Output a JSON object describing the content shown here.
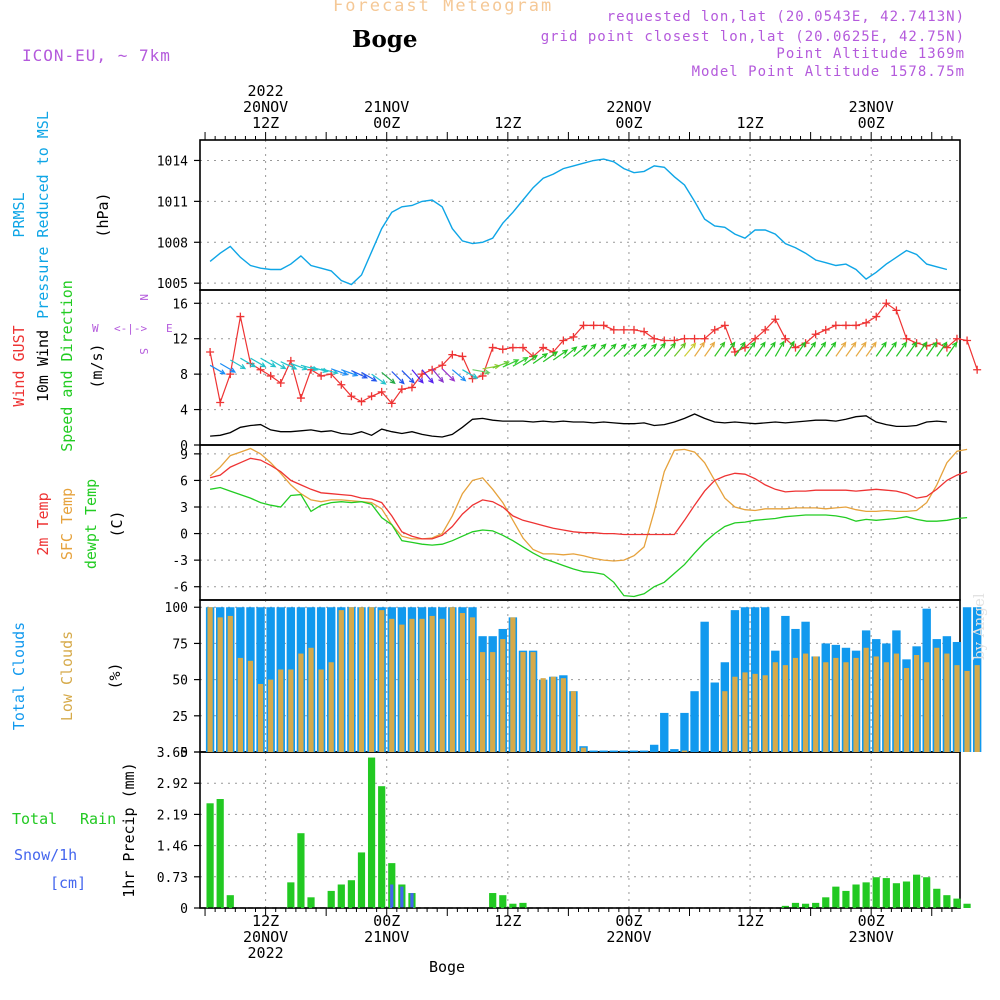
{
  "header": {
    "title": "Forecast Meteogram",
    "station": "Boge",
    "model": "ICON-EU, ~ 7km",
    "requested": "requested lon,lat (20.0543E, 42.7413N)",
    "grid": "grid point closest lon,lat (20.0625E, 42.75N)",
    "point_alt": "Point Altitude 1369m",
    "model_alt": "Model Point Altitude 1578.75m",
    "byline": "by Angel",
    "footer": "Boge"
  },
  "colors": {
    "pressure": "#0ea5e6",
    "gust": "#ee3333",
    "wind": "#000000",
    "temp": "#ee3333",
    "sfc": "#e6a23c",
    "dewpt": "#22cc22",
    "total_cloud": "#1199ee",
    "low_cloud": "#d6aa4a",
    "rain": "#22c922",
    "snow": "#4466ee",
    "purple": "#b45adc",
    "grid": "#999999"
  },
  "time_axis": {
    "top_labels": [
      {
        "t": 12,
        "lines": [
          "2022",
          "20NOV",
          "12Z"
        ]
      },
      {
        "t": 24,
        "lines": [
          "21NOV",
          "00Z"
        ]
      },
      {
        "t": 36,
        "lines": [
          "12Z"
        ]
      },
      {
        "t": 48,
        "lines": [
          "22NOV",
          "00Z"
        ]
      },
      {
        "t": 60,
        "lines": [
          "12Z"
        ]
      },
      {
        "t": 72,
        "lines": [
          "23NOV",
          "00Z"
        ]
      }
    ],
    "bottom_labels": [
      {
        "t": 12,
        "lines": [
          "12Z",
          "20NOV",
          "2022"
        ]
      },
      {
        "t": 24,
        "lines": [
          "00Z",
          "21NOV"
        ]
      },
      {
        "t": 36,
        "lines": [
          "12Z"
        ]
      },
      {
        "t": 48,
        "lines": [
          "00Z",
          "22NOV"
        ]
      },
      {
        "t": 60,
        "lines": [
          "12Z"
        ]
      },
      {
        "t": 72,
        "lines": [
          "00Z",
          "23NOV"
        ]
      }
    ]
  },
  "panel_labels": {
    "pressure": [
      {
        "text": "PRMSL",
        "color": "pressure"
      },
      {
        "text": "Pressure Reduced to MSL",
        "color": "pressure"
      },
      {
        "text": "(hPa)",
        "color": "wind"
      }
    ],
    "wind": [
      {
        "text": "Wind GUST",
        "color": "gust"
      },
      {
        "text": "10m Wind",
        "color": "wind"
      },
      {
        "text": "Speed and Direction",
        "color": "dewpt"
      },
      {
        "text": "(m/s)",
        "color": "wind"
      }
    ],
    "temp": [
      {
        "text": "2m Temp",
        "color": "temp"
      },
      {
        "text": "SFC Temp",
        "color": "sfc"
      },
      {
        "text": "dewpt Temp",
        "color": "dewpt"
      },
      {
        "text": "(C)",
        "color": "wind"
      }
    ],
    "cloud": [
      {
        "text": "Total Clouds",
        "color": "total_cloud"
      },
      {
        "text": "Low Clouds",
        "color": "low_cloud"
      },
      {
        "text": "(%)",
        "color": "wind"
      }
    ],
    "precip_axis": "1hr Precip (mm)",
    "precip_legend": {
      "total": "Total",
      "rain": "Rain",
      "snow": "Snow/1h",
      "cm": "[cm]"
    },
    "compass": {
      "n": "N",
      "s": "S",
      "w": "W",
      "e": "E",
      "arrow": "<-|->"
    }
  },
  "chart_data": [
    {
      "type": "line",
      "name": "pressure",
      "x_start": 6.5,
      "x_step": 1,
      "ylim": [
        1004.5,
        1015.5
      ],
      "yticks": [
        1005,
        1008,
        1011,
        1014
      ],
      "ylabel": "Pressure Reduced to MSL (hPa)",
      "values": [
        1006.6,
        1007.2,
        1007.7,
        1006.9,
        1006.3,
        1006.1,
        1006.0,
        1006.0,
        1006.4,
        1007.0,
        1006.3,
        1006.1,
        1005.9,
        1005.2,
        1004.9,
        1005.6,
        1007.3,
        1009.0,
        1010.2,
        1010.6,
        1010.7,
        1011.0,
        1011.1,
        1010.6,
        1009.0,
        1008.1,
        1007.9,
        1008.0,
        1008.3,
        1009.4,
        1010.2,
        1011.1,
        1012.0,
        1012.7,
        1013.0,
        1013.4,
        1013.6,
        1013.8,
        1014.0,
        1014.1,
        1013.9,
        1013.4,
        1013.1,
        1013.2,
        1013.6,
        1013.5,
        1012.8,
        1012.2,
        1011.0,
        1009.7,
        1009.2,
        1009.1,
        1008.6,
        1008.3,
        1008.9,
        1008.9,
        1008.6,
        1007.9,
        1007.6,
        1007.2,
        1006.7,
        1006.5,
        1006.3,
        1006.4,
        1006.0,
        1005.3,
        1005.8,
        1006.4,
        1006.9,
        1007.4,
        1007.1,
        1006.4,
        1006.2,
        1006.0
      ]
    },
    {
      "type": "line",
      "name": "wind",
      "x_start": 6.5,
      "x_step": 1,
      "ylim": [
        0,
        17.5
      ],
      "yticks": [
        0,
        4,
        8,
        12,
        16
      ],
      "ylabel": "Speed (m/s)",
      "gust": [
        10.5,
        4.8,
        8.0,
        14.5,
        9.2,
        8.5,
        7.8,
        7.0,
        9.5,
        5.3,
        8.5,
        7.8,
        8.0,
        6.8,
        5.5,
        4.9,
        5.5,
        6.0,
        4.7,
        6.3,
        6.5,
        8.0,
        8.5,
        9.0,
        10.2,
        10.0,
        7.5,
        7.8,
        11.0,
        10.8,
        11.0,
        11.0,
        10.0,
        11.0,
        10.5,
        11.8,
        12.2,
        13.5,
        13.5,
        13.5,
        13.0,
        13.0,
        13.0,
        12.8,
        12.0,
        11.8,
        11.8,
        12.0,
        12.0,
        12.0,
        13.0,
        13.5,
        10.5,
        11.0,
        12.0,
        13.0,
        14.2,
        12.0,
        11.0,
        11.5,
        12.5,
        13.0,
        13.5,
        13.5,
        13.5,
        13.8,
        14.5,
        16.0,
        15.2,
        12.0,
        11.5,
        11.2,
        11.5,
        11.0,
        12.0,
        11.8,
        8.5
      ],
      "speed": [
        1.0,
        1.1,
        1.4,
        2.0,
        2.2,
        2.3,
        1.7,
        1.5,
        1.5,
        1.6,
        1.7,
        1.5,
        1.6,
        1.3,
        1.2,
        1.5,
        1.1,
        1.8,
        1.5,
        1.3,
        1.5,
        1.2,
        1.0,
        0.9,
        1.2,
        2.0,
        2.9,
        3.0,
        2.8,
        2.7,
        2.7,
        2.7,
        2.6,
        2.7,
        2.6,
        2.7,
        2.6,
        2.6,
        2.5,
        2.6,
        2.5,
        2.4,
        2.4,
        2.5,
        2.2,
        2.3,
        2.6,
        3.0,
        3.5,
        3.0,
        2.6,
        2.5,
        2.6,
        2.5,
        2.4,
        2.5,
        2.6,
        2.5,
        2.6,
        2.7,
        2.8,
        2.8,
        2.7,
        2.9,
        3.2,
        3.3,
        2.6,
        2.3,
        2.1,
        2.1,
        2.2,
        2.6,
        2.7,
        2.6
      ],
      "arrow_base": [
        9.0,
        9.2,
        9.6,
        9.8,
        9.8,
        9.8,
        9.6,
        9.4,
        9.2,
        9.0,
        8.8,
        8.6,
        8.6,
        8.5,
        8.4,
        8.2,
        8.0,
        8.2,
        8.3,
        8.4,
        8.5,
        8.5,
        8.6,
        8.6,
        8.5,
        8.5,
        8.5,
        8.6,
        8.7,
        8.8,
        8.9,
        9.0,
        9.2,
        9.4,
        9.6,
        9.8,
        10.0,
        10.0,
        10.0,
        10.0,
        10.0,
        10.0,
        10.0,
        10.0,
        10.0,
        10.0,
        10.0,
        10.0,
        10.0,
        10.0,
        10.0,
        10.0,
        10.0,
        10.0,
        10.0,
        10.0,
        10.0,
        10.0,
        10.0,
        10.0,
        10.0,
        10.0,
        10.0,
        10.0,
        10.0,
        10.0,
        10.0,
        10.0,
        10.0,
        10.0,
        10.0,
        10.0,
        10.0,
        10.0
      ],
      "dir": [
        300,
        300,
        300,
        300,
        300,
        300,
        300,
        295,
        290,
        285,
        285,
        285,
        290,
        290,
        295,
        300,
        305,
        310,
        315,
        315,
        320,
        320,
        320,
        315,
        310,
        300,
        280,
        260,
        250,
        245,
        240,
        235,
        235,
        235,
        235,
        230,
        230,
        225,
        225,
        225,
        225,
        225,
        225,
        225,
        220,
        220,
        220,
        220,
        215,
        215,
        215,
        215,
        215,
        215,
        215,
        215,
        210,
        210,
        215,
        215,
        215,
        215,
        215,
        215,
        215,
        215,
        215,
        215,
        215,
        215,
        215,
        215,
        215,
        215
      ],
      "arrow_colors": [
        "#1b8cf5",
        "#1b8cf5",
        "#22c3cc",
        "#22c3cc",
        "#22c3cc",
        "#22c3cc",
        "#22c3cc",
        "#22c3cc",
        "#22c3cc",
        "#22c3cc",
        "#22c3cc",
        "#22c3cc",
        "#1b8cf5",
        "#1b8cf5",
        "#2255ee",
        "#2255ee",
        "#22c3cc",
        "#22aa44",
        "#2255ee",
        "#2255ee",
        "#5522ee",
        "#5522ee",
        "#8833cc",
        "#9933cc",
        "#1b8cf5",
        "#22c3cc",
        "#66cc66",
        "#99cc33",
        "#66cc33",
        "#33cc33",
        "#33cc33",
        "#22c322",
        "#22c322",
        "#22c322",
        "#22c322",
        "#22c322",
        "#22c322",
        "#22c322",
        "#22c322",
        "#22c322",
        "#22c322",
        "#22c322",
        "#22c322",
        "#22c322",
        "#22c322",
        "#33c322",
        "#66c322",
        "#cccc33",
        "#e6aa44",
        "#e6aa44",
        "#33c322",
        "#22c322",
        "#22c322",
        "#22c322",
        "#22c322",
        "#22c322",
        "#22c322",
        "#22c322",
        "#22c322",
        "#22c322",
        "#22c322",
        "#22c322",
        "#e6aa44",
        "#e6aa44",
        "#e6aa44",
        "#e6aa44",
        "#22c322",
        "#22c322",
        "#22c322",
        "#22c322",
        "#22c322",
        "#22c322",
        "#22c322",
        "#22c322"
      ]
    },
    {
      "type": "line",
      "name": "temperature",
      "x_start": 6.5,
      "x_step": 1,
      "ylim": [
        -7.5,
        10
      ],
      "yticks": [
        -6,
        -3,
        0,
        3,
        6,
        9
      ],
      "ylabel": "Temperature (C)",
      "t2m": [
        6.3,
        6.6,
        7.5,
        8.0,
        8.5,
        8.3,
        7.7,
        7.0,
        6.0,
        5.5,
        5.0,
        4.6,
        4.5,
        4.4,
        4.3,
        4.0,
        3.9,
        3.5,
        2.0,
        0.2,
        -0.3,
        -0.6,
        -0.6,
        -0.2,
        0.8,
        2.2,
        3.2,
        3.8,
        3.6,
        3.0,
        2.0,
        1.5,
        1.2,
        0.9,
        0.6,
        0.4,
        0.2,
        0.1,
        0.1,
        0.0,
        0.0,
        -0.1,
        -0.1,
        -0.1,
        -0.1,
        -0.1,
        -0.1,
        1.5,
        3.2,
        4.8,
        6.0,
        6.5,
        6.8,
        6.7,
        6.2,
        5.5,
        5.0,
        4.7,
        4.8,
        4.8,
        4.9,
        4.9,
        4.9,
        4.9,
        4.8,
        4.9,
        5.0,
        4.9,
        4.8,
        4.5,
        4.0,
        4.2,
        5.0,
        6.0,
        6.6,
        7.0
      ],
      "sfc": [
        6.5,
        7.5,
        8.8,
        9.2,
        9.6,
        9.0,
        8.0,
        6.8,
        5.5,
        4.5,
        3.8,
        3.6,
        3.8,
        3.8,
        3.7,
        3.6,
        3.5,
        2.8,
        1.0,
        -0.3,
        -0.6,
        -0.6,
        -0.5,
        0.0,
        2.0,
        4.5,
        6.0,
        6.3,
        5.0,
        3.5,
        1.5,
        -0.5,
        -1.8,
        -2.3,
        -2.3,
        -2.4,
        -2.3,
        -2.5,
        -2.8,
        -3.0,
        -3.1,
        -3.0,
        -2.5,
        -1.5,
        2.5,
        7.0,
        9.4,
        9.5,
        9.2,
        8.0,
        6.0,
        4.0,
        3.0,
        2.7,
        2.6,
        2.8,
        2.8,
        2.8,
        2.9,
        2.9,
        2.9,
        2.8,
        2.9,
        3.0,
        2.7,
        2.5,
        2.5,
        2.6,
        2.5,
        2.5,
        2.6,
        3.5,
        5.5,
        8.0,
        9.3,
        9.5
      ],
      "dewpt": [
        5.0,
        5.2,
        4.8,
        4.4,
        4.0,
        3.5,
        3.2,
        3.0,
        4.3,
        4.4,
        2.5,
        3.2,
        3.5,
        3.6,
        3.5,
        3.6,
        3.3,
        1.8,
        1.0,
        -0.8,
        -1.0,
        -1.2,
        -1.3,
        -1.2,
        -0.8,
        -0.3,
        0.2,
        0.4,
        0.3,
        -0.2,
        -0.8,
        -1.5,
        -2.2,
        -2.8,
        -3.2,
        -3.6,
        -4.0,
        -4.3,
        -4.4,
        -4.6,
        -5.5,
        -7.0,
        -7.1,
        -6.8,
        -6.0,
        -5.5,
        -4.5,
        -3.5,
        -2.2,
        -1.0,
        0.0,
        0.8,
        1.2,
        1.3,
        1.5,
        1.6,
        1.7,
        1.9,
        2.0,
        2.1,
        2.1,
        2.1,
        2.0,
        1.8,
        1.4,
        1.6,
        1.5,
        1.6,
        1.7,
        1.9,
        1.6,
        1.4,
        1.4,
        1.5,
        1.7,
        1.8
      ]
    },
    {
      "type": "bar",
      "name": "clouds",
      "x_start": 6.5,
      "x_step": 1,
      "ylim": [
        0,
        105
      ],
      "yticks": [
        0,
        25,
        50,
        75,
        100
      ],
      "ylabel": "Clouds (%)",
      "total": [
        100,
        100,
        100,
        100,
        100,
        100,
        100,
        100,
        100,
        100,
        100,
        100,
        100,
        100,
        100,
        100,
        100,
        100,
        100,
        100,
        100,
        100,
        100,
        100,
        100,
        100,
        100,
        80,
        80,
        85,
        93,
        70,
        70,
        50,
        52,
        53,
        42,
        4,
        1,
        1,
        1,
        1,
        1,
        1,
        5,
        27,
        2,
        27,
        42,
        90,
        48,
        62,
        98,
        100,
        100,
        100,
        70,
        94,
        85,
        90,
        66,
        75,
        74,
        72,
        70,
        84,
        78,
        75,
        84,
        64,
        73,
        99,
        78,
        80,
        76,
        100,
        100
      ],
      "low": [
        100,
        93,
        94,
        65,
        63,
        47,
        50,
        57,
        57,
        68,
        72,
        57,
        62,
        98,
        100,
        100,
        100,
        98,
        92,
        88,
        92,
        92,
        94,
        92,
        100,
        96,
        93,
        69,
        69,
        78,
        93,
        69,
        69,
        51,
        52,
        51,
        42,
        3,
        0,
        0,
        0,
        0,
        0,
        0,
        0,
        0,
        0,
        1,
        0,
        0,
        0,
        42,
        52,
        55,
        54,
        53,
        62,
        60,
        65,
        68,
        66,
        62,
        65,
        62,
        65,
        72,
        66,
        62,
        68,
        58,
        67,
        62,
        72,
        68,
        60,
        56,
        60
      ]
    },
    {
      "type": "bar",
      "name": "precipitation",
      "x_start": 6.5,
      "x_step": 1,
      "ylim": [
        0,
        3.65
      ],
      "yticks": [
        0,
        0.73,
        1.46,
        2.19,
        2.92,
        3.65
      ],
      "ylabel": "1hr Precip (mm)",
      "rain": [
        2.45,
        2.55,
        0.3,
        0,
        0,
        0,
        0,
        0,
        0.6,
        1.75,
        0.25,
        0,
        0.4,
        0.55,
        0.65,
        1.3,
        3.52,
        2.85,
        1.05,
        0.55,
        0.35,
        0,
        0,
        0,
        0,
        0,
        0,
        0,
        0.35,
        0.3,
        0.1,
        0.12,
        0,
        0,
        0,
        0,
        0,
        0,
        0,
        0,
        0,
        0,
        0,
        0,
        0,
        0,
        0,
        0,
        0,
        0,
        0,
        0,
        0,
        0,
        0,
        0,
        0,
        0.05,
        0.12,
        0.1,
        0.12,
        0.25,
        0.5,
        0.4,
        0.55,
        0.6,
        0.72,
        0.7,
        0.58,
        0.62,
        0.78,
        0.72,
        0.45,
        0.3,
        0.22,
        0.1
      ],
      "snow": [
        0,
        0,
        0,
        0,
        0,
        0,
        0,
        0,
        0,
        0,
        0,
        0,
        0,
        0,
        0,
        0,
        0,
        0,
        0.55,
        0.5,
        0.35,
        0,
        0,
        0,
        0,
        0,
        0,
        0,
        0,
        0,
        0,
        0,
        0,
        0,
        0,
        0,
        0,
        0,
        0,
        0,
        0,
        0,
        0,
        0,
        0,
        0,
        0,
        0,
        0,
        0,
        0,
        0,
        0,
        0,
        0,
        0,
        0,
        0,
        0,
        0,
        0,
        0,
        0,
        0,
        0,
        0,
        0,
        0,
        0,
        0,
        0,
        0,
        0,
        0,
        0,
        0
      ]
    }
  ]
}
